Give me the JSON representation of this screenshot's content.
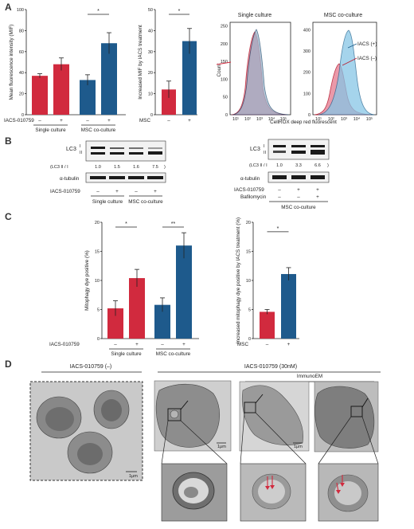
{
  "panels": {
    "a": "A",
    "b": "B",
    "c": "C",
    "d": "D"
  },
  "panelA": {
    "bar1": {
      "ylabel": "Mean fluorescence intensity (MIF)",
      "ylim": [
        0,
        100
      ],
      "yticks": [
        "0",
        "20",
        "40",
        "60",
        "80",
        "100"
      ],
      "row_label": "IACS-010759",
      "signs": [
        "–",
        "+",
        "–",
        "+"
      ],
      "groups": [
        "Single culture",
        "MSC co-culture"
      ],
      "values": [
        37,
        48,
        33,
        68
      ],
      "errors": [
        2,
        6,
        5,
        10
      ],
      "colors": [
        "#d12a3e",
        "#d12a3e",
        "#1e5a8c",
        "#1e5a8c"
      ],
      "sig": "*"
    },
    "bar2": {
      "ylabel": "Increased MIF by IACS treatment",
      "ylim": [
        0,
        50
      ],
      "yticks": [
        "0",
        "10",
        "20",
        "30",
        "40",
        "50"
      ],
      "row_label": "MSC",
      "signs": [
        "–",
        "+"
      ],
      "values": [
        12,
        35
      ],
      "errors": [
        4,
        6
      ],
      "colors": [
        "#d12a3e",
        "#1e5a8c"
      ],
      "sig": "*"
    },
    "flow": {
      "title1": "Single culture",
      "title2": "MSC co-culture",
      "ylabel": "Count",
      "xlabel": "CellROX deep red fluorescent",
      "yticks1": [
        "0",
        "50",
        "100",
        "150",
        "200",
        "250"
      ],
      "yticks2": [
        "0",
        "100",
        "200",
        "300",
        "400"
      ],
      "xticks": [
        "10¹",
        "10²",
        "10³",
        "10⁴",
        "10⁵"
      ],
      "legend_plus": "IACS (+)",
      "legend_minus": "IACS (–)"
    }
  },
  "panelB": {
    "left": {
      "lc3": "LC3",
      "band_i": "I",
      "band_ii": "II",
      "ratio_label": "(LC3 II / I",
      "ratios": [
        "1.0",
        "1.5",
        "1.6",
        "7.5"
      ],
      "ratio_close": ")",
      "tubulin": "α-tubulin",
      "row_label": "IACS-010759",
      "signs": [
        "–",
        "+",
        "–",
        "+"
      ],
      "groups": [
        "Single culture",
        "MSC co-culture"
      ]
    },
    "right": {
      "lc3": "LC3",
      "band_i": "I",
      "band_ii": "II",
      "ratio_label": "(LC3 II / I",
      "ratios": [
        "1.0",
        "3.3",
        "6.6"
      ],
      "ratio_close": ")",
      "tubulin": "α-tubulin",
      "row1_label": "IACS-010759",
      "row1_signs": [
        "–",
        "+",
        "+"
      ],
      "row2_label": "Bafilomycin",
      "row2_signs": [
        "–",
        "–",
        "+"
      ],
      "group": "MSC co-culture"
    }
  },
  "panelC": {
    "bar1": {
      "ylabel": "Mitophagy dye positive (%)",
      "ylim": [
        0,
        20
      ],
      "yticks": [
        "0",
        "5",
        "10",
        "15",
        "20"
      ],
      "row_label": "IACS-010759",
      "signs": [
        "–",
        "+",
        "–",
        "+"
      ],
      "groups": [
        "Single culture",
        "MSC co-culture"
      ],
      "values": [
        5.2,
        10.4,
        5.8,
        16
      ],
      "errors": [
        1.3,
        1.5,
        1.2,
        2.2
      ],
      "colors": [
        "#d12a3e",
        "#d12a3e",
        "#1e5a8c",
        "#1e5a8c"
      ],
      "sig1": "*",
      "sig2": "**"
    },
    "bar2": {
      "ylabel": "Increased mitophagy dye positive by IACS treatment (%)",
      "ylim": [
        0,
        20
      ],
      "yticks": [
        "0",
        "5",
        "10",
        "15",
        "20"
      ],
      "row_label": "MSC",
      "signs": [
        "–",
        "+"
      ],
      "values": [
        4.6,
        11.1
      ],
      "errors": [
        0.4,
        1.1
      ],
      "colors": [
        "#d12a3e",
        "#1e5a8c"
      ],
      "sig": "*"
    }
  },
  "panelD": {
    "header_left": "IACS-010759 (–)",
    "header_right": "IACS-010759 (30nM)",
    "immuno": "ImmunoEM",
    "scale1": "1μm",
    "scale2": "1μm",
    "scale3": "1μm"
  }
}
